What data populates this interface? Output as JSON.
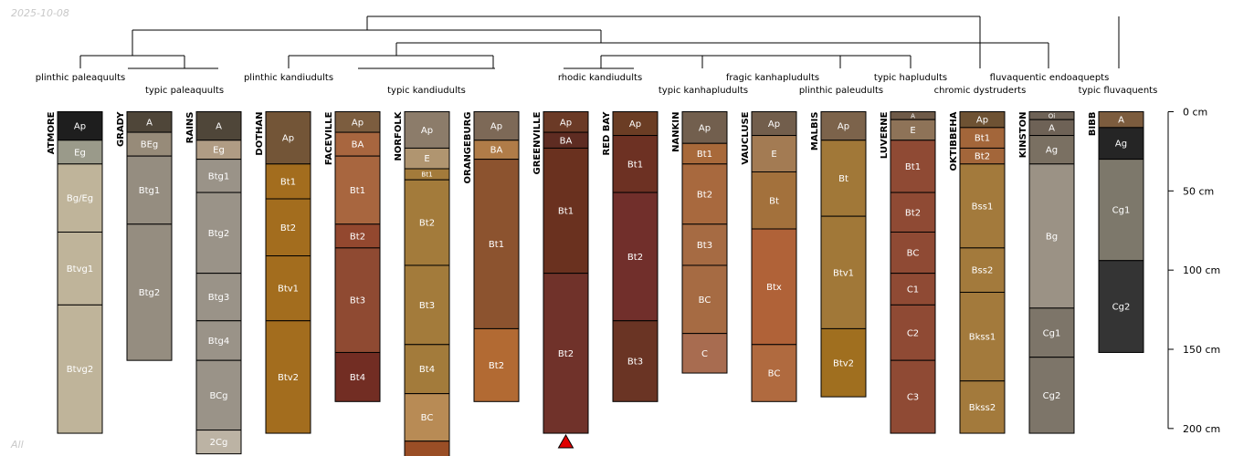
{
  "date": "2025-10-08",
  "corner_label": "All",
  "depth_unit": "cm",
  "depth_axis": {
    "ticks": [
      {
        "value": 0,
        "label": "0 cm"
      },
      {
        "value": 50,
        "label": "50 cm"
      },
      {
        "value": 100,
        "label": "100 cm"
      },
      {
        "value": 150,
        "label": "150 cm"
      },
      {
        "value": 200,
        "label": "200 cm"
      }
    ]
  },
  "taxa": [
    {
      "label": "plinthic paleaquults",
      "row": 1
    },
    {
      "label": "typic paleaquults",
      "row": 2
    },
    {
      "label": "plinthic kandiudults",
      "row": 1
    },
    {
      "label": "typic kandiudults",
      "row": 2
    },
    {
      "label": "rhodic kandiudults",
      "row": 1
    },
    {
      "label": "typic kanhapludults",
      "row": 2
    },
    {
      "label": "fragic kanhapludults",
      "row": 1
    },
    {
      "label": "plinthic paleudults",
      "row": 2
    },
    {
      "label": "typic hapludults",
      "row": 1
    },
    {
      "label": "chromic dystruderts",
      "row": 2
    },
    {
      "label": "fluvaquentic endoaquepts",
      "row": 1
    },
    {
      "label": "typic fluvaquents",
      "row": 2
    }
  ],
  "profiles": [
    {
      "name": "ATMORE",
      "horizons": [
        {
          "name": "Ap",
          "top": 0,
          "bottom": 18,
          "color": "#1e1e1e"
        },
        {
          "name": "Eg",
          "top": 18,
          "bottom": 33,
          "color": "#9a9a8a"
        },
        {
          "name": "Bg/Eg",
          "top": 33,
          "bottom": 76,
          "color": "#bfb49a"
        },
        {
          "name": "Btvg1",
          "top": 76,
          "bottom": 122,
          "color": "#bfb49a"
        },
        {
          "name": "Btvg2",
          "top": 122,
          "bottom": 203,
          "color": "#bfb49a"
        }
      ]
    },
    {
      "name": "GRADY",
      "horizons": [
        {
          "name": "A",
          "top": 0,
          "bottom": 13,
          "color": "#4f4639"
        },
        {
          "name": "BEg",
          "top": 13,
          "bottom": 28,
          "color": "#978b79"
        },
        {
          "name": "Btg1",
          "top": 28,
          "bottom": 71,
          "color": "#958d80"
        },
        {
          "name": "Btg2",
          "top": 71,
          "bottom": 157,
          "color": "#958d80"
        }
      ]
    },
    {
      "name": "RAINS",
      "horizons": [
        {
          "name": "A",
          "top": 0,
          "bottom": 18,
          "color": "#4f4639"
        },
        {
          "name": "Eg",
          "top": 18,
          "bottom": 30,
          "color": "#b09c84"
        },
        {
          "name": "Btg1",
          "top": 30,
          "bottom": 51,
          "color": "#9a9388"
        },
        {
          "name": "Btg2",
          "top": 51,
          "bottom": 102,
          "color": "#9a9388"
        },
        {
          "name": "Btg3",
          "top": 102,
          "bottom": 132,
          "color": "#9a9388"
        },
        {
          "name": "Btg4",
          "top": 132,
          "bottom": 157,
          "color": "#9a9388"
        },
        {
          "name": "BCg",
          "top": 157,
          "bottom": 201,
          "color": "#9a9388"
        },
        {
          "name": "2Cg",
          "top": 201,
          "bottom": 216,
          "color": "#bcb3a4"
        }
      ]
    },
    {
      "name": "DOTHAN",
      "horizons": [
        {
          "name": "Ap",
          "top": 0,
          "bottom": 33,
          "color": "#735537"
        },
        {
          "name": "Bt1",
          "top": 33,
          "bottom": 55,
          "color": "#a36d1e"
        },
        {
          "name": "Bt2",
          "top": 55,
          "bottom": 91,
          "color": "#a36d1e"
        },
        {
          "name": "Btv1",
          "top": 91,
          "bottom": 132,
          "color": "#a36d1e"
        },
        {
          "name": "Btv2",
          "top": 132,
          "bottom": 203,
          "color": "#a36d1e"
        }
      ]
    },
    {
      "name": "FACEVILLE",
      "horizons": [
        {
          "name": "Ap",
          "top": 0,
          "bottom": 13,
          "color": "#7c5d3f"
        },
        {
          "name": "BA",
          "top": 13,
          "bottom": 28,
          "color": "#a8663f"
        },
        {
          "name": "Bt1",
          "top": 28,
          "bottom": 71,
          "color": "#a8663f"
        },
        {
          "name": "Bt2",
          "top": 71,
          "bottom": 86,
          "color": "#93482f"
        },
        {
          "name": "Bt3",
          "top": 86,
          "bottom": 152,
          "color": "#8f4a32"
        },
        {
          "name": "Bt4",
          "top": 152,
          "bottom": 183,
          "color": "#722d23"
        }
      ]
    },
    {
      "name": "NORFOLK",
      "horizons": [
        {
          "name": "Ap",
          "top": 0,
          "bottom": 23,
          "color": "#8c7c6a"
        },
        {
          "name": "E",
          "top": 23,
          "bottom": 36,
          "color": "#b09570"
        },
        {
          "name": "Bt1",
          "top": 36,
          "bottom": 43,
          "color": "#a37b3b"
        },
        {
          "name": "Bt2",
          "top": 43,
          "bottom": 97,
          "color": "#a37b3b"
        },
        {
          "name": "Bt3",
          "top": 97,
          "bottom": 147,
          "color": "#a37b3b"
        },
        {
          "name": "Bt4",
          "top": 147,
          "bottom": 178,
          "color": "#a37b3b"
        },
        {
          "name": "BC",
          "top": 178,
          "bottom": 208,
          "color": "#b88b55"
        },
        {
          "name": "",
          "top": 208,
          "bottom": 230,
          "color": "#9a4e26"
        }
      ]
    },
    {
      "name": "ORANGEBURG",
      "horizons": [
        {
          "name": "Ap",
          "top": 0,
          "bottom": 18,
          "color": "#7d6957"
        },
        {
          "name": "BA",
          "top": 18,
          "bottom": 30,
          "color": "#b07c48"
        },
        {
          "name": "Bt1",
          "top": 30,
          "bottom": 137,
          "color": "#8c532f"
        },
        {
          "name": "Bt2",
          "top": 137,
          "bottom": 183,
          "color": "#b26a33"
        }
      ]
    },
    {
      "name": "GREENVILLE",
      "horizons": [
        {
          "name": "Ap",
          "top": 0,
          "bottom": 13,
          "color": "#6b3a26"
        },
        {
          "name": "BA",
          "top": 13,
          "bottom": 23,
          "color": "#5e2c22"
        },
        {
          "name": "Bt1",
          "top": 23,
          "bottom": 102,
          "color": "#6a311f"
        },
        {
          "name": "Bt2",
          "top": 102,
          "bottom": 203,
          "color": "#70322a"
        }
      ]
    },
    {
      "name": "RED BAY",
      "horizons": [
        {
          "name": "Ap",
          "top": 0,
          "bottom": 15,
          "color": "#6b3d24"
        },
        {
          "name": "Bt1",
          "top": 15,
          "bottom": 51,
          "color": "#6d3123"
        },
        {
          "name": "Bt2",
          "top": 51,
          "bottom": 132,
          "color": "#712f2b"
        },
        {
          "name": "Bt3",
          "top": 132,
          "bottom": 183,
          "color": "#6a3424"
        }
      ]
    },
    {
      "name": "NANKIN",
      "horizons": [
        {
          "name": "Ap",
          "top": 0,
          "bottom": 20,
          "color": "#725f4e"
        },
        {
          "name": "Bt1",
          "top": 20,
          "bottom": 33,
          "color": "#a8693a"
        },
        {
          "name": "Bt2",
          "top": 33,
          "bottom": 71,
          "color": "#a8693e"
        },
        {
          "name": "Bt3",
          "top": 71,
          "bottom": 97,
          "color": "#a66b43"
        },
        {
          "name": "BC",
          "top": 97,
          "bottom": 140,
          "color": "#a66b43"
        },
        {
          "name": "C",
          "top": 140,
          "bottom": 165,
          "color": "#a86c50"
        }
      ]
    },
    {
      "name": "VAUCLUSE",
      "horizons": [
        {
          "name": "Ap",
          "top": 0,
          "bottom": 15,
          "color": "#725e4c"
        },
        {
          "name": "E",
          "top": 15,
          "bottom": 38,
          "color": "#a37b53"
        },
        {
          "name": "Bt",
          "top": 38,
          "bottom": 74,
          "color": "#a3713c"
        },
        {
          "name": "Btx",
          "top": 74,
          "bottom": 147,
          "color": "#b06238"
        },
        {
          "name": "BC",
          "top": 147,
          "bottom": 183,
          "color": "#b06a3f"
        }
      ]
    },
    {
      "name": "MALBIS",
      "horizons": [
        {
          "name": "Ap",
          "top": 0,
          "bottom": 18,
          "color": "#7c634b"
        },
        {
          "name": "Bt",
          "top": 18,
          "bottom": 66,
          "color": "#a17838"
        },
        {
          "name": "Btv1",
          "top": 66,
          "bottom": 137,
          "color": "#a17838"
        },
        {
          "name": "Btv2",
          "top": 137,
          "bottom": 180,
          "color": "#a06f1f"
        }
      ]
    },
    {
      "name": "LUVERNE",
      "horizons": [
        {
          "name": "A",
          "top": 0,
          "bottom": 5,
          "color": "#6e5a48"
        },
        {
          "name": "E",
          "top": 5,
          "bottom": 18,
          "color": "#8e7358"
        },
        {
          "name": "Bt1",
          "top": 18,
          "bottom": 51,
          "color": "#8f4a34"
        },
        {
          "name": "Bt2",
          "top": 51,
          "bottom": 76,
          "color": "#8f4a34"
        },
        {
          "name": "BC",
          "top": 76,
          "bottom": 102,
          "color": "#8f4a34"
        },
        {
          "name": "C1",
          "top": 102,
          "bottom": 122,
          "color": "#8f4a34"
        },
        {
          "name": "C2",
          "top": 122,
          "bottom": 157,
          "color": "#8f4a34"
        },
        {
          "name": "C3",
          "top": 157,
          "bottom": 203,
          "color": "#8f4a34"
        }
      ]
    },
    {
      "name": "OKTIBBEHA",
      "horizons": [
        {
          "name": "Ap",
          "top": 0,
          "bottom": 10,
          "color": "#6e5233"
        },
        {
          "name": "Bt1",
          "top": 10,
          "bottom": 23,
          "color": "#a3663a"
        },
        {
          "name": "Bt2",
          "top": 23,
          "bottom": 33,
          "color": "#a3663a"
        },
        {
          "name": "Bss1",
          "top": 33,
          "bottom": 86,
          "color": "#a37a3c"
        },
        {
          "name": "Bss2",
          "top": 86,
          "bottom": 114,
          "color": "#a37a3c"
        },
        {
          "name": "Bkss1",
          "top": 114,
          "bottom": 170,
          "color": "#a37a3c"
        },
        {
          "name": "Bkss2",
          "top": 170,
          "bottom": 203,
          "color": "#a37a3c"
        }
      ]
    },
    {
      "name": "KINSTON",
      "horizons": [
        {
          "name": "Oi",
          "top": 0,
          "bottom": 5,
          "color": "#6e6256"
        },
        {
          "name": "A",
          "top": 5,
          "bottom": 15,
          "color": "#6e6256"
        },
        {
          "name": "Ag",
          "top": 15,
          "bottom": 33,
          "color": "#7a7062"
        },
        {
          "name": "Bg",
          "top": 33,
          "bottom": 124,
          "color": "#9b9285"
        },
        {
          "name": "Cg1",
          "top": 124,
          "bottom": 155,
          "color": "#7d7569"
        },
        {
          "name": "Cg2",
          "top": 155,
          "bottom": 203,
          "color": "#7d7569"
        }
      ]
    },
    {
      "name": "BIBB",
      "horizons": [
        {
          "name": "A",
          "top": 0,
          "bottom": 10,
          "color": "#7c5c3e"
        },
        {
          "name": "Ag",
          "top": 10,
          "bottom": 30,
          "color": "#252525"
        },
        {
          "name": "Cg1",
          "top": 30,
          "bottom": 94,
          "color": "#7d786b"
        },
        {
          "name": "Cg2",
          "top": 94,
          "bottom": 152,
          "color": "#343434"
        }
      ]
    }
  ],
  "truncated_profile": "GREENVILLE",
  "marker_color": "#e00000"
}
